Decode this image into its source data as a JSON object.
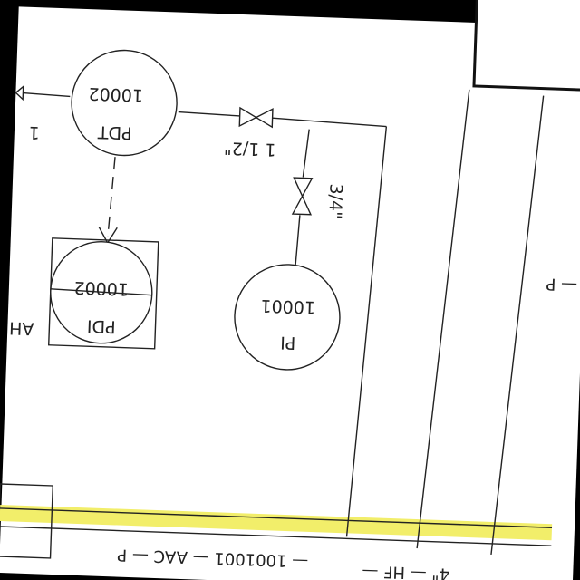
{
  "instruments": {
    "pdt": {
      "tag": "PDT",
      "number": "10002",
      "connection": "1"
    },
    "pdi": {
      "tag": "PDI",
      "number": "10002",
      "alarm": "AH"
    },
    "pi": {
      "tag": "PI",
      "number": "10001"
    }
  },
  "valves": {
    "gate_horizontal_size": "1 1/2\"",
    "gate_vertical_size": "3/4\""
  },
  "line_labels": {
    "main_line": "— 1001001 — AAC — P",
    "branch_right": "— P",
    "branch_bottom": "4\" — HF —"
  },
  "highlight": {
    "color": "#f2ee6a"
  }
}
